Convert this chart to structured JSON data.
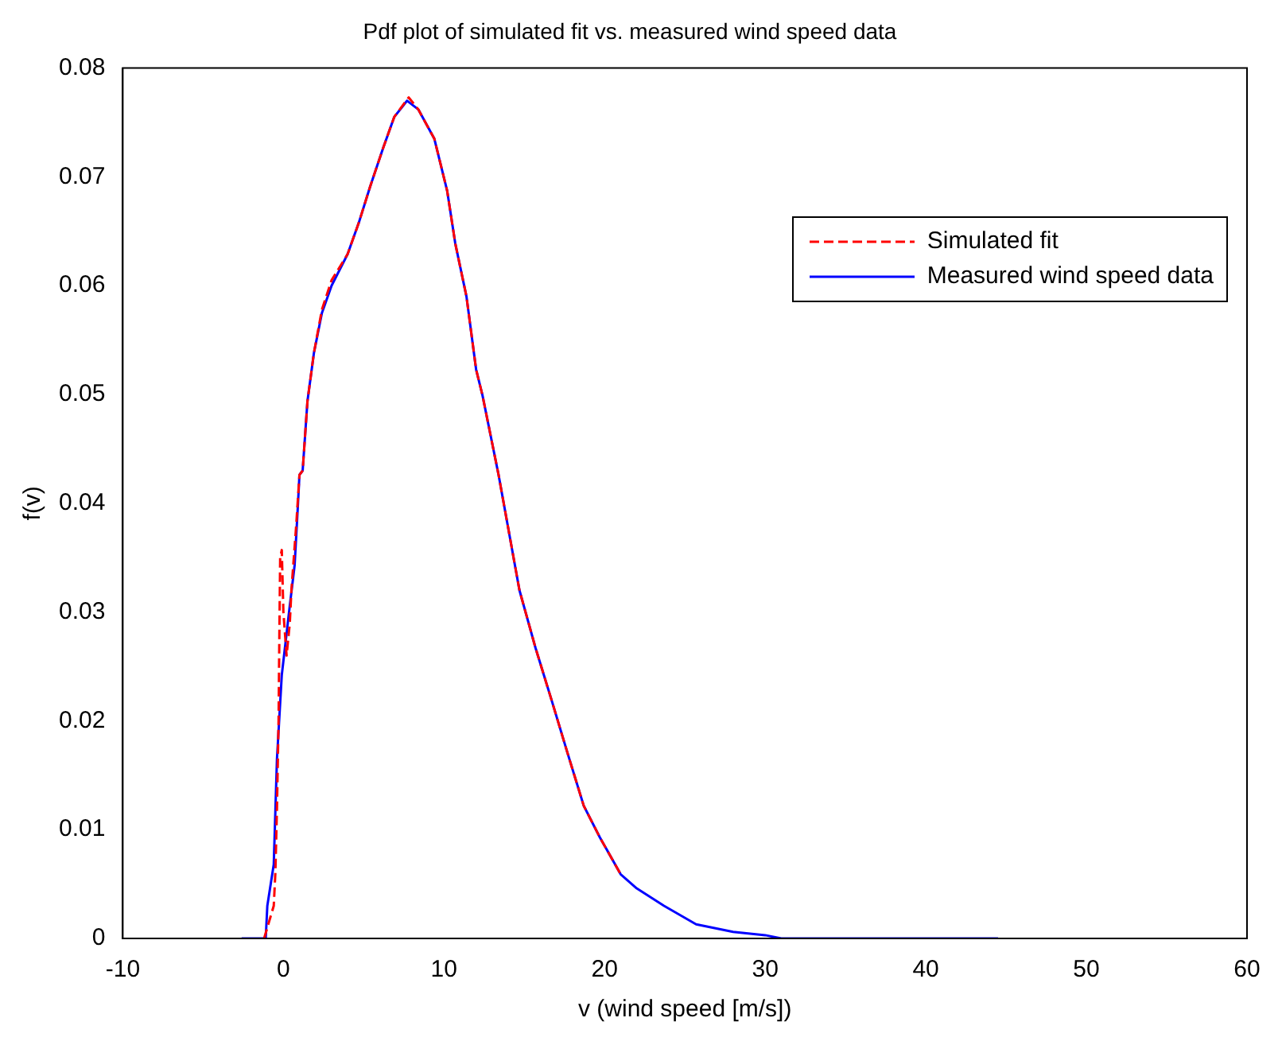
{
  "chart_data": {
    "type": "line",
    "title": "Pdf plot of simulated fit vs. measured wind speed data",
    "xlabel": "v (wind speed [m/s])",
    "ylabel": "f(v)",
    "xlim": [
      -10,
      60
    ],
    "xticks": [
      -10,
      0,
      10,
      20,
      30,
      40,
      50,
      60
    ],
    "ylim": [
      0,
      0.08
    ],
    "yticks": [
      0,
      0.01,
      0.02,
      0.03,
      0.04,
      0.05,
      0.06,
      0.07,
      0.08
    ],
    "grid": false,
    "legend": "top right",
    "marker": "none",
    "series": [
      {
        "name": "Simulated fit",
        "color": "#ff0000",
        "line_style": "dashed",
        "x": [
          -1.2,
          -0.6,
          -0.5,
          -0.4,
          -0.3,
          -0.25,
          -0.2,
          -0.1,
          0,
          0.2,
          0.4,
          0.5,
          0.8,
          1.0,
          1.2,
          1.5,
          1.9,
          2.4,
          3.0,
          4.0,
          4.7,
          5.4,
          6.2,
          6.9,
          7.8,
          8.4,
          9.4,
          10.2,
          10.7,
          11.4,
          12.0,
          12.4,
          13.4,
          14.7,
          15.7,
          16.7,
          17.7,
          18.7,
          19.7,
          21.0
        ],
        "values": [
          0,
          0.003,
          0.006,
          0.012,
          0.02,
          0.028,
          0.035,
          0.0357,
          0.03,
          0.026,
          0.029,
          0.032,
          0.038,
          0.0426,
          0.043,
          0.0494,
          0.0538,
          0.0578,
          0.0605,
          0.0629,
          0.0658,
          0.0691,
          0.0726,
          0.0755,
          0.0773,
          0.0762,
          0.0735,
          0.0687,
          0.0639,
          0.059,
          0.0523,
          0.0499,
          0.0426,
          0.032,
          0.0267,
          0.0219,
          0.017,
          0.0122,
          0.0093,
          0.0059
        ]
      },
      {
        "name": "Measured wind speed data",
        "color": "#0000ff",
        "line_style": "solid",
        "x": [
          -2.6,
          -1.1,
          -1.0,
          -0.6,
          -0.4,
          -0.1,
          0.4,
          0.7,
          0.9,
          1.0,
          1.2,
          1.5,
          1.9,
          2.4,
          3.0,
          4.0,
          4.7,
          5.4,
          6.2,
          6.9,
          7.7,
          8.4,
          9.4,
          10.2,
          10.7,
          11.4,
          12.0,
          12.4,
          13.4,
          14.7,
          15.7,
          16.7,
          17.7,
          18.7,
          19.7,
          21.0,
          22.0,
          23.7,
          25.7,
          28.0,
          30.0,
          31.0,
          44.5
        ],
        "values": [
          0,
          0,
          0.003,
          0.0068,
          0.0165,
          0.0242,
          0.0306,
          0.0343,
          0.0397,
          0.0426,
          0.043,
          0.0494,
          0.0538,
          0.0575,
          0.06,
          0.0629,
          0.0658,
          0.0691,
          0.0726,
          0.0755,
          0.077,
          0.0762,
          0.0735,
          0.0687,
          0.0639,
          0.059,
          0.0523,
          0.0499,
          0.0426,
          0.032,
          0.0267,
          0.0219,
          0.017,
          0.0122,
          0.0093,
          0.0059,
          0.0046,
          0.003,
          0.0013,
          0.0006,
          0.0003,
          0,
          0
        ]
      }
    ]
  }
}
